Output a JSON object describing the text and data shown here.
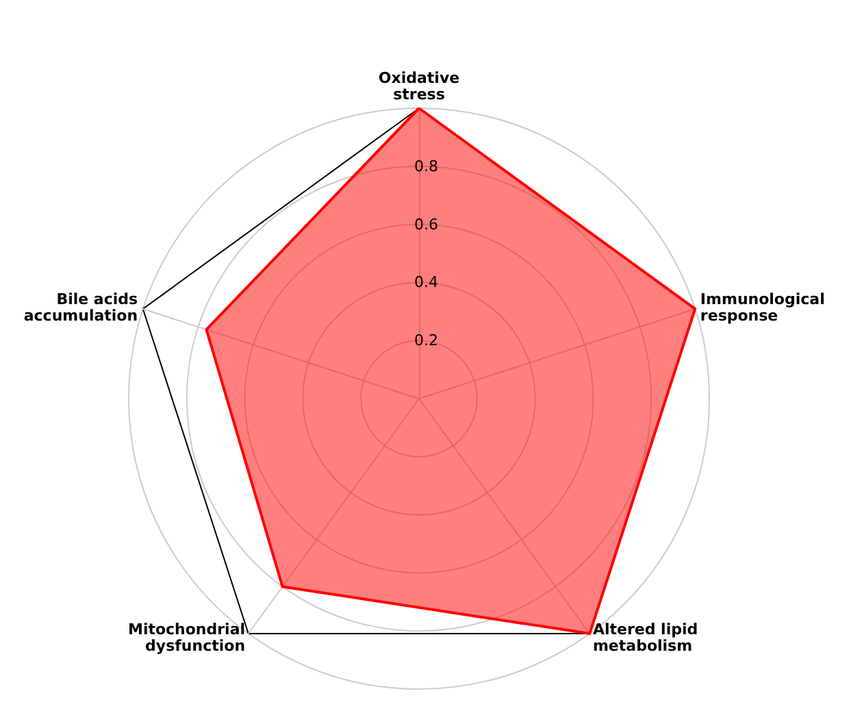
{
  "chart_data": {
    "type": "radar",
    "categories": [
      "Oxidative stress",
      "Immunological response",
      "Altered lipid metabolism",
      "Mitochondrial dysfunction",
      "Bile acids accumulation"
    ],
    "series": [
      {
        "color": "#ff0000",
        "values": [
          1.0,
          1.0,
          1.0,
          0.8,
          0.77
        ]
      }
    ],
    "ylim": [
      0,
      1
    ],
    "yticks": [
      0.2,
      0.4,
      0.6,
      0.8
    ],
    "grid": true
  }
}
